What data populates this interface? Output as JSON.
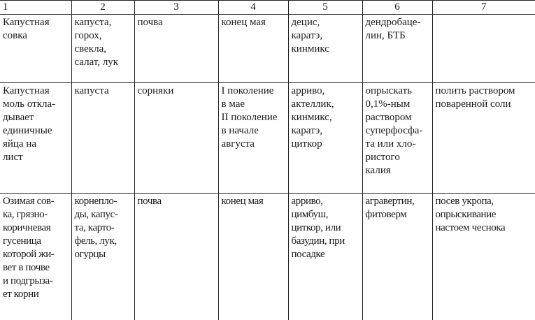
{
  "table": {
    "header": [
      "1",
      "2",
      "3",
      "4",
      "5",
      "6",
      "7"
    ],
    "rows": [
      [
        [
          "Капустная",
          "совка"
        ],
        [
          "капуста,",
          "горох,",
          "свекла,",
          "салат, лук"
        ],
        [
          "почва"
        ],
        [
          "конец мая"
        ],
        [
          "децис,",
          "каратэ,",
          "кинмикс"
        ],
        [
          "дендробаце-",
          "лин, БТБ"
        ],
        []
      ],
      [
        [
          "Капустная",
          "моль откла-",
          "дывает",
          "единичные",
          "яйца на",
          "лист"
        ],
        [
          "капуста"
        ],
        [
          "сорняки"
        ],
        [
          "I поколение",
          "в мае",
          "II поколение",
          "в начале",
          "августа"
        ],
        [
          "арриво,",
          "актеллик,",
          "кинмикс,",
          "каратэ,",
          "циткор"
        ],
        [
          "опрыскать",
          "0,1%-ным",
          "раствором",
          "суперфосфа-",
          "та или хло-",
          "ристого",
          "калия"
        ],
        [
          "полить раствором",
          "поваренной соли"
        ]
      ],
      [
        [
          "Озимая сов-",
          "ка, грязно-",
          "коричневая",
          "гусеница",
          "которой жи-",
          "вет в почве",
          "и подгрыза-",
          "ет корни"
        ],
        [
          "корнепло-",
          "ды, капус-",
          "та, карто-",
          "фель, лук,",
          "огурцы"
        ],
        [
          "почва"
        ],
        [
          "конец мая"
        ],
        [
          "арриво,",
          "цимбуш,",
          "циткор, или",
          "базудин, при",
          "посадке"
        ],
        [
          "агравертин,",
          "фитоверм"
        ],
        [
          "посев укропа,",
          "опрыскивание",
          "настоем чеснока"
        ]
      ]
    ]
  }
}
